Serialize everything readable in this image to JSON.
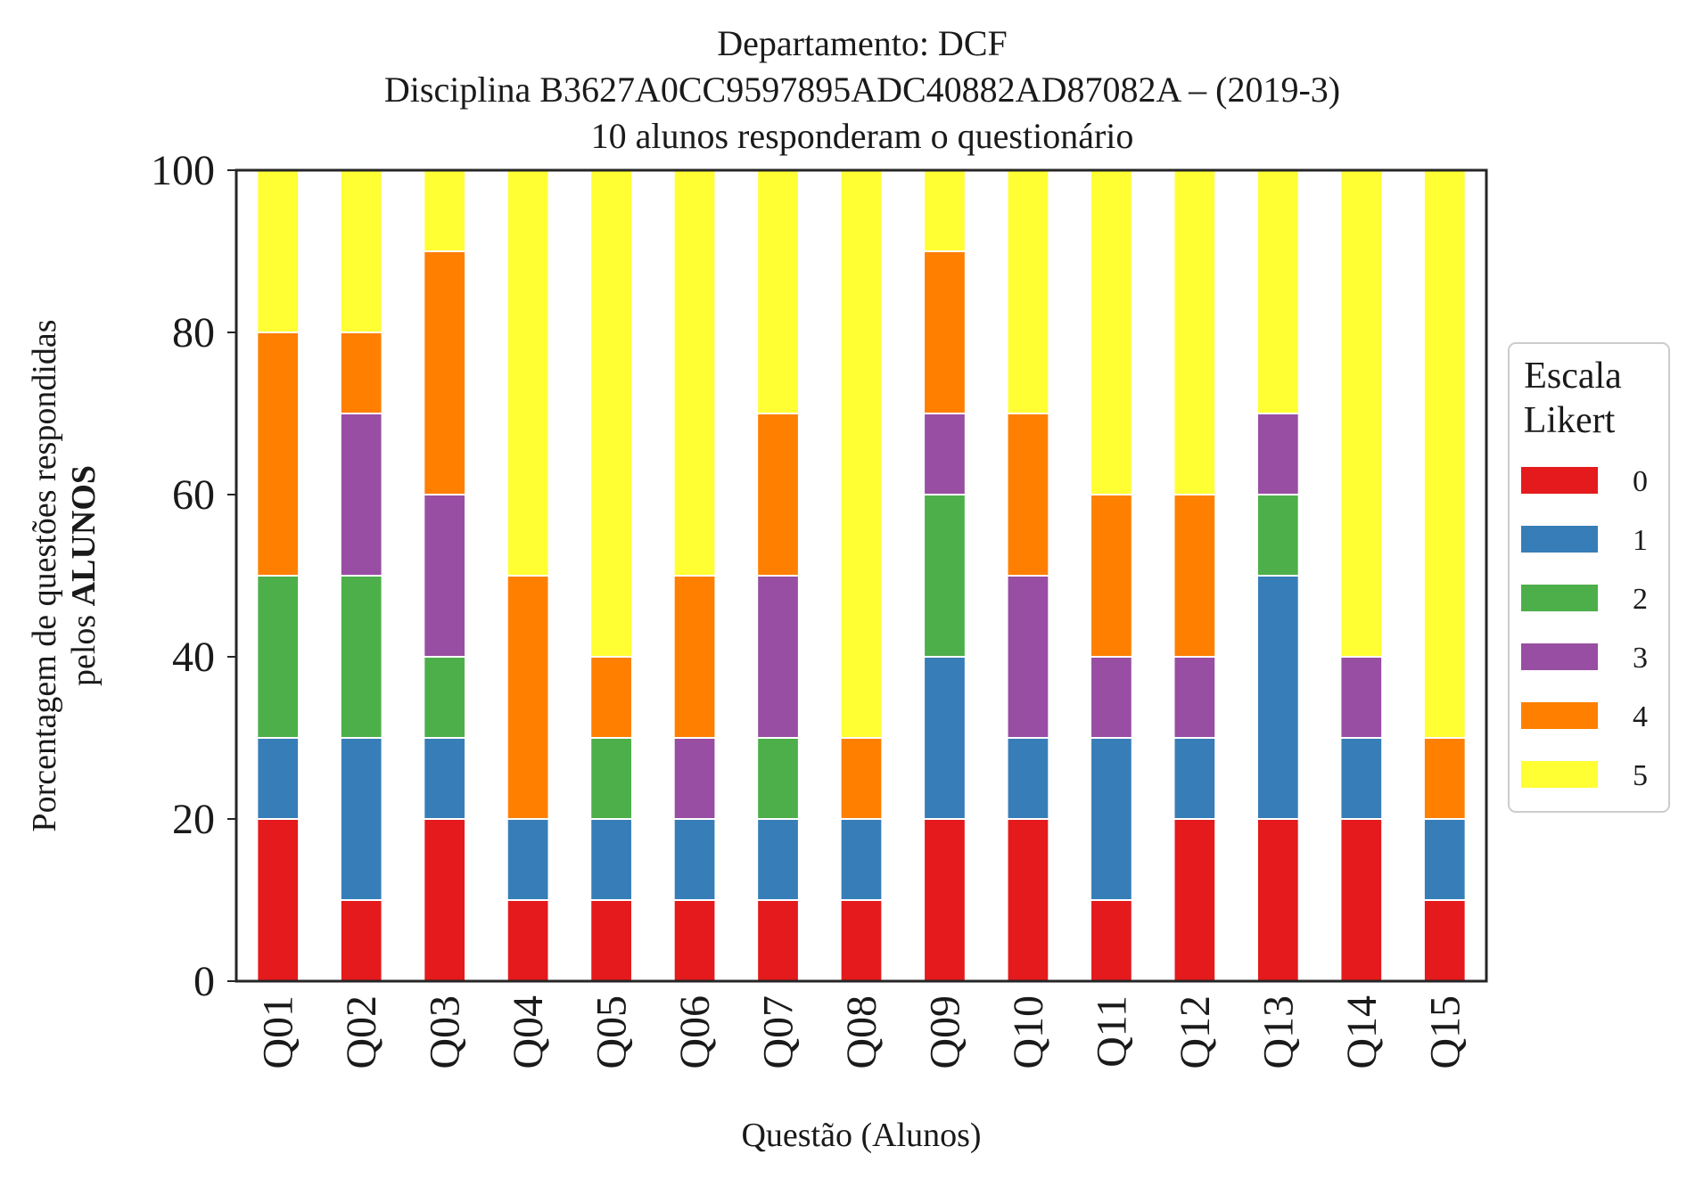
{
  "chart_data": {
    "type": "bar",
    "stacked": true,
    "title_lines": [
      "Departamento: DCF",
      "Disciplina B3627A0CC9597895ADC40882AD87082A – (2019-3)",
      "10 alunos responderam o questionário"
    ],
    "xlabel": "Questão (Alunos)",
    "ylabel_line1": "Porcentagem de questões respondidas",
    "ylabel_line2_prefix": "pelos ",
    "ylabel_line2_bold": "ALUNOS",
    "ylim": [
      0,
      100
    ],
    "yticks": [
      0,
      20,
      40,
      60,
      80,
      100
    ],
    "grid": false,
    "legend": {
      "title_line1": "Escala",
      "title_line2": "Likert",
      "position": "right"
    },
    "categories": [
      "Q01",
      "Q02",
      "Q03",
      "Q04",
      "Q05",
      "Q06",
      "Q07",
      "Q08",
      "Q09",
      "Q10",
      "Q11",
      "Q12",
      "Q13",
      "Q14",
      "Q15"
    ],
    "series": [
      {
        "name": "0",
        "color": "#e41a1c",
        "values": [
          20,
          10,
          20,
          10,
          10,
          10,
          10,
          10,
          20,
          20,
          10,
          20,
          20,
          20,
          10
        ]
      },
      {
        "name": "1",
        "color": "#377eb8",
        "values": [
          10,
          20,
          10,
          10,
          10,
          10,
          10,
          10,
          20,
          10,
          20,
          10,
          30,
          10,
          10
        ]
      },
      {
        "name": "2",
        "color": "#4daf4a",
        "values": [
          20,
          20,
          10,
          0,
          10,
          0,
          10,
          0,
          20,
          0,
          0,
          0,
          10,
          0,
          0
        ]
      },
      {
        "name": "3",
        "color": "#984ea3",
        "values": [
          0,
          20,
          20,
          0,
          0,
          10,
          20,
          0,
          10,
          20,
          10,
          10,
          10,
          10,
          0
        ]
      },
      {
        "name": "4",
        "color": "#ff7f00",
        "values": [
          30,
          10,
          30,
          30,
          10,
          20,
          20,
          10,
          20,
          20,
          20,
          20,
          0,
          0,
          10
        ]
      },
      {
        "name": "5",
        "color": "#ffff33",
        "values": [
          20,
          20,
          10,
          50,
          60,
          50,
          30,
          70,
          10,
          30,
          40,
          40,
          30,
          60,
          70
        ]
      }
    ]
  }
}
